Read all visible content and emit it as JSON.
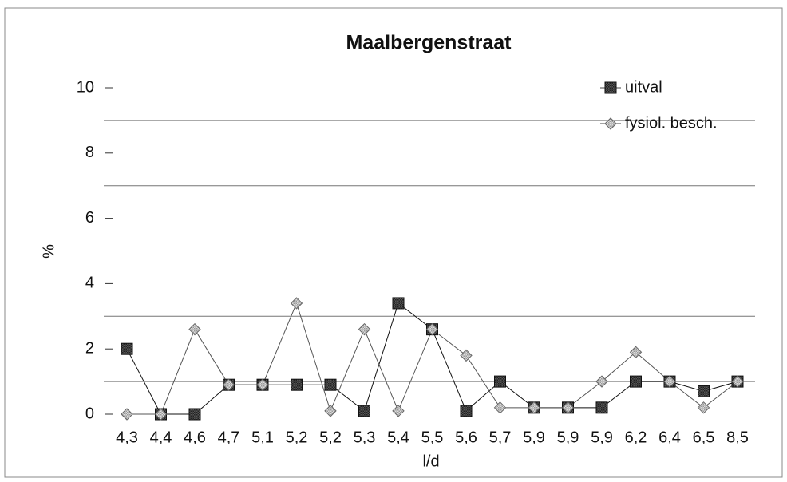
{
  "chart_data": {
    "type": "line",
    "title": "Maalbergenstraat",
    "xlabel": "l/d",
    "ylabel": "%",
    "categories": [
      "4,3",
      "4,4",
      "4,6",
      "4,7",
      "5,1",
      "5,2",
      "5,2",
      "5,3",
      "5,4",
      "5,5",
      "5,6",
      "5,7",
      "5,9",
      "5,9",
      "5,9",
      "6,2",
      "6,4",
      "6,5",
      "8,5"
    ],
    "series": [
      {
        "name": "uitval",
        "color": "#333333",
        "marker": "square",
        "values": [
          2.0,
          0,
          0,
          0.9,
          0.9,
          0.9,
          0.9,
          0.1,
          3.4,
          2.6,
          0.1,
          1.0,
          0.2,
          0.2,
          0.2,
          1.0,
          1.0,
          0.7,
          1.0
        ]
      },
      {
        "name": "fysiol. besch.",
        "color": "#bbbbbb",
        "marker": "diamond",
        "values": [
          0,
          0,
          2.6,
          0.9,
          0.9,
          3.4,
          0.1,
          2.6,
          0.1,
          2.6,
          1.8,
          0.2,
          0.2,
          0.2,
          1.0,
          1.9,
          1.0,
          0.2,
          1.0
        ]
      }
    ],
    "ylim": [
      0,
      10
    ],
    "yticks": [
      0,
      2,
      4,
      6,
      8,
      10
    ],
    "grid_lines": [
      1,
      3,
      5,
      7,
      9
    ],
    "legend": "upper right"
  }
}
